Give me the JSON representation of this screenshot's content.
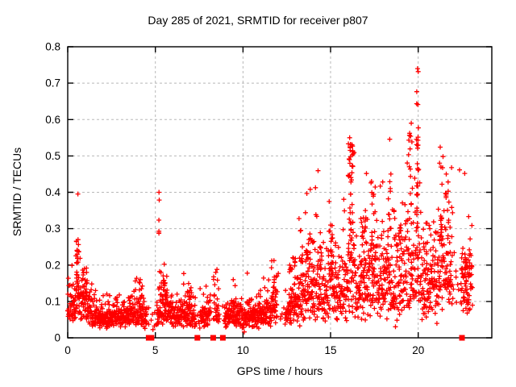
{
  "chart_data": {
    "type": "scatter",
    "title": "Day 285 of 2021, SRMTID for receiver p807",
    "xlabel": "GPS time / hours",
    "ylabel": "SRMTID / TECUs",
    "xlim": [
      0,
      24.2
    ],
    "ylim": [
      0,
      0.8
    ],
    "x_ticks": [
      {
        "v": 0,
        "label": "0"
      },
      {
        "v": 5,
        "label": "5"
      },
      {
        "v": 10,
        "label": "10"
      },
      {
        "v": 15,
        "label": "15"
      },
      {
        "v": 20,
        "label": "20"
      }
    ],
    "y_ticks": [
      {
        "v": 0,
        "label": "0"
      },
      {
        "v": 0.1,
        "label": "0.1"
      },
      {
        "v": 0.2,
        "label": "0.2"
      },
      {
        "v": 0.3,
        "label": "0.3"
      },
      {
        "v": 0.4,
        "label": "0.4"
      },
      {
        "v": 0.5,
        "label": "0.5"
      },
      {
        "v": 0.6,
        "label": "0.6"
      },
      {
        "v": 0.7,
        "label": "0.7"
      },
      {
        "v": 0.8,
        "label": "0.8"
      }
    ],
    "grid": {
      "on": true,
      "color": "#b8b8b8",
      "dash": "3,3"
    },
    "marker": {
      "shape": "plus",
      "color": "#ff0000",
      "size": 7
    },
    "zero_marker": {
      "shape": "filled-square",
      "color": "#ff0000",
      "size": 7
    },
    "border_color": "#000000",
    "model": {
      "seed": 285,
      "start": 0.0,
      "end": 23.1,
      "step": 0.01,
      "sigma_quiet": 0.35,
      "sigma_active": 0.45,
      "baseline": [
        [
          0.0,
          0.075
        ],
        [
          0.4,
          0.09
        ],
        [
          0.55,
          0.13
        ],
        [
          0.7,
          0.1
        ],
        [
          0.9,
          0.095
        ],
        [
          1.1,
          0.095
        ],
        [
          1.3,
          0.07
        ],
        [
          1.6,
          0.062
        ],
        [
          2.0,
          0.06
        ],
        [
          2.5,
          0.065
        ],
        [
          3.0,
          0.062
        ],
        [
          3.5,
          0.06
        ],
        [
          4.0,
          0.07
        ],
        [
          4.3,
          0.065
        ],
        [
          4.6,
          0.05
        ],
        [
          5.0,
          0.055
        ],
        [
          5.3,
          0.085
        ],
        [
          5.6,
          0.09
        ],
        [
          5.9,
          0.075
        ],
        [
          6.2,
          0.065
        ],
        [
          6.6,
          0.07
        ],
        [
          7.0,
          0.065
        ],
        [
          7.3,
          0.055
        ],
        [
          7.6,
          0.055
        ],
        [
          8.0,
          0.06
        ],
        [
          8.3,
          0.075
        ],
        [
          8.6,
          0.07
        ],
        [
          9.0,
          0.055
        ],
        [
          9.4,
          0.065
        ],
        [
          9.8,
          0.06
        ],
        [
          10.2,
          0.055
        ],
        [
          10.6,
          0.06
        ],
        [
          11.0,
          0.065
        ],
        [
          11.4,
          0.07
        ],
        [
          11.8,
          0.09
        ],
        [
          12.1,
          0.06
        ],
        [
          12.4,
          0.065
        ],
        [
          12.7,
          0.085
        ],
        [
          13.0,
          0.1
        ],
        [
          13.3,
          0.12
        ],
        [
          13.6,
          0.13
        ],
        [
          14.0,
          0.14
        ],
        [
          14.4,
          0.125
        ],
        [
          14.8,
          0.13
        ],
        [
          15.1,
          0.15
        ],
        [
          15.4,
          0.12
        ],
        [
          15.7,
          0.13
        ],
        [
          16.0,
          0.16
        ],
        [
          16.2,
          0.2
        ],
        [
          16.4,
          0.15
        ],
        [
          16.7,
          0.13
        ],
        [
          17.0,
          0.15
        ],
        [
          17.4,
          0.17
        ],
        [
          17.8,
          0.15
        ],
        [
          18.2,
          0.16
        ],
        [
          18.5,
          0.15
        ],
        [
          18.8,
          0.14
        ],
        [
          19.2,
          0.16
        ],
        [
          19.6,
          0.19
        ],
        [
          19.9,
          0.21
        ],
        [
          20.2,
          0.16
        ],
        [
          20.6,
          0.14
        ],
        [
          21.0,
          0.16
        ],
        [
          21.3,
          0.19
        ],
        [
          21.7,
          0.18
        ],
        [
          22.0,
          0.15
        ],
        [
          22.3,
          0.12
        ],
        [
          22.6,
          0.13
        ],
        [
          22.9,
          0.15
        ],
        [
          23.1,
          0.16
        ]
      ],
      "gaps": [
        [
          4.5,
          5.08
        ],
        [
          7.3,
          7.55
        ],
        [
          8.15,
          8.45
        ],
        [
          8.6,
          8.95
        ],
        [
          11.95,
          12.4
        ],
        [
          21.95,
          22.42
        ]
      ],
      "gap_keep_prob": 0.12,
      "spikes": [
        {
          "x": 0.55,
          "w": 0.08,
          "max": 0.27,
          "n": 22
        },
        {
          "x": 1.0,
          "w": 0.15,
          "max": 0.18,
          "n": 12
        },
        {
          "x": 4.15,
          "w": 0.12,
          "max": 0.16,
          "n": 8
        },
        {
          "x": 5.22,
          "w": 0.03,
          "max": 0.4,
          "n": 9
        },
        {
          "x": 5.5,
          "w": 0.18,
          "max": 0.18,
          "n": 18
        },
        {
          "x": 6.9,
          "w": 0.15,
          "max": 0.13,
          "n": 8
        },
        {
          "x": 8.45,
          "w": 0.15,
          "max": 0.18,
          "n": 10
        },
        {
          "x": 9.5,
          "w": 0.06,
          "max": 0.16,
          "n": 5
        },
        {
          "x": 11.85,
          "w": 0.12,
          "max": 0.17,
          "n": 9
        },
        {
          "x": 12.75,
          "w": 0.1,
          "max": 0.2,
          "n": 8
        },
        {
          "x": 12.9,
          "w": 0.1,
          "max": 0.22,
          "n": 6
        },
        {
          "x": 13.35,
          "w": 0.08,
          "max": 0.25,
          "n": 8
        },
        {
          "x": 13.65,
          "w": 0.08,
          "max": 0.24,
          "n": 8
        },
        {
          "x": 13.9,
          "w": 0.25,
          "max": 0.27,
          "n": 10
        },
        {
          "x": 14.35,
          "w": 0.1,
          "max": 0.25,
          "n": 8
        },
        {
          "x": 15.05,
          "w": 0.08,
          "max": 0.31,
          "n": 12
        },
        {
          "x": 16.15,
          "w": 0.15,
          "max": 0.55,
          "n": 42
        },
        {
          "x": 16.8,
          "w": 0.15,
          "max": 0.33,
          "n": 10
        },
        {
          "x": 17.0,
          "w": 0.1,
          "max": 0.35,
          "n": 8
        },
        {
          "x": 17.45,
          "w": 0.12,
          "max": 0.43,
          "n": 16
        },
        {
          "x": 18.0,
          "w": 0.1,
          "max": 0.32,
          "n": 6
        },
        {
          "x": 18.35,
          "w": 0.1,
          "max": 0.45,
          "n": 12
        },
        {
          "x": 18.65,
          "w": 0.08,
          "max": 0.35,
          "n": 6
        },
        {
          "x": 19.0,
          "w": 0.12,
          "max": 0.31,
          "n": 8
        },
        {
          "x": 19.55,
          "w": 0.1,
          "max": 0.59,
          "n": 16
        },
        {
          "x": 19.95,
          "w": 0.06,
          "max": 0.74,
          "n": 26
        },
        {
          "x": 20.5,
          "w": 0.2,
          "max": 0.3,
          "n": 10
        },
        {
          "x": 21.3,
          "w": 0.12,
          "max": 0.48,
          "n": 15
        },
        {
          "x": 21.7,
          "w": 0.15,
          "max": 0.45,
          "n": 12
        },
        {
          "x": 22.75,
          "w": 0.2,
          "max": 0.23,
          "n": 16
        }
      ],
      "zeros": [
        4.62,
        4.78,
        7.4,
        8.3,
        8.85,
        22.5
      ]
    }
  }
}
